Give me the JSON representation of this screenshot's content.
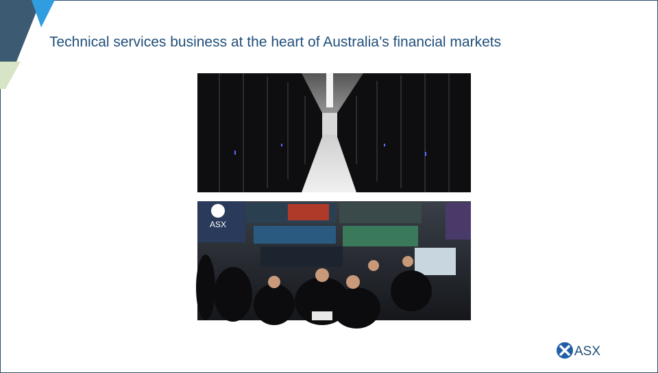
{
  "slide": {
    "title": "Technical services business at the heart of Australia’s financial markets",
    "photo_logo": "ASX",
    "logo": "ASX"
  }
}
